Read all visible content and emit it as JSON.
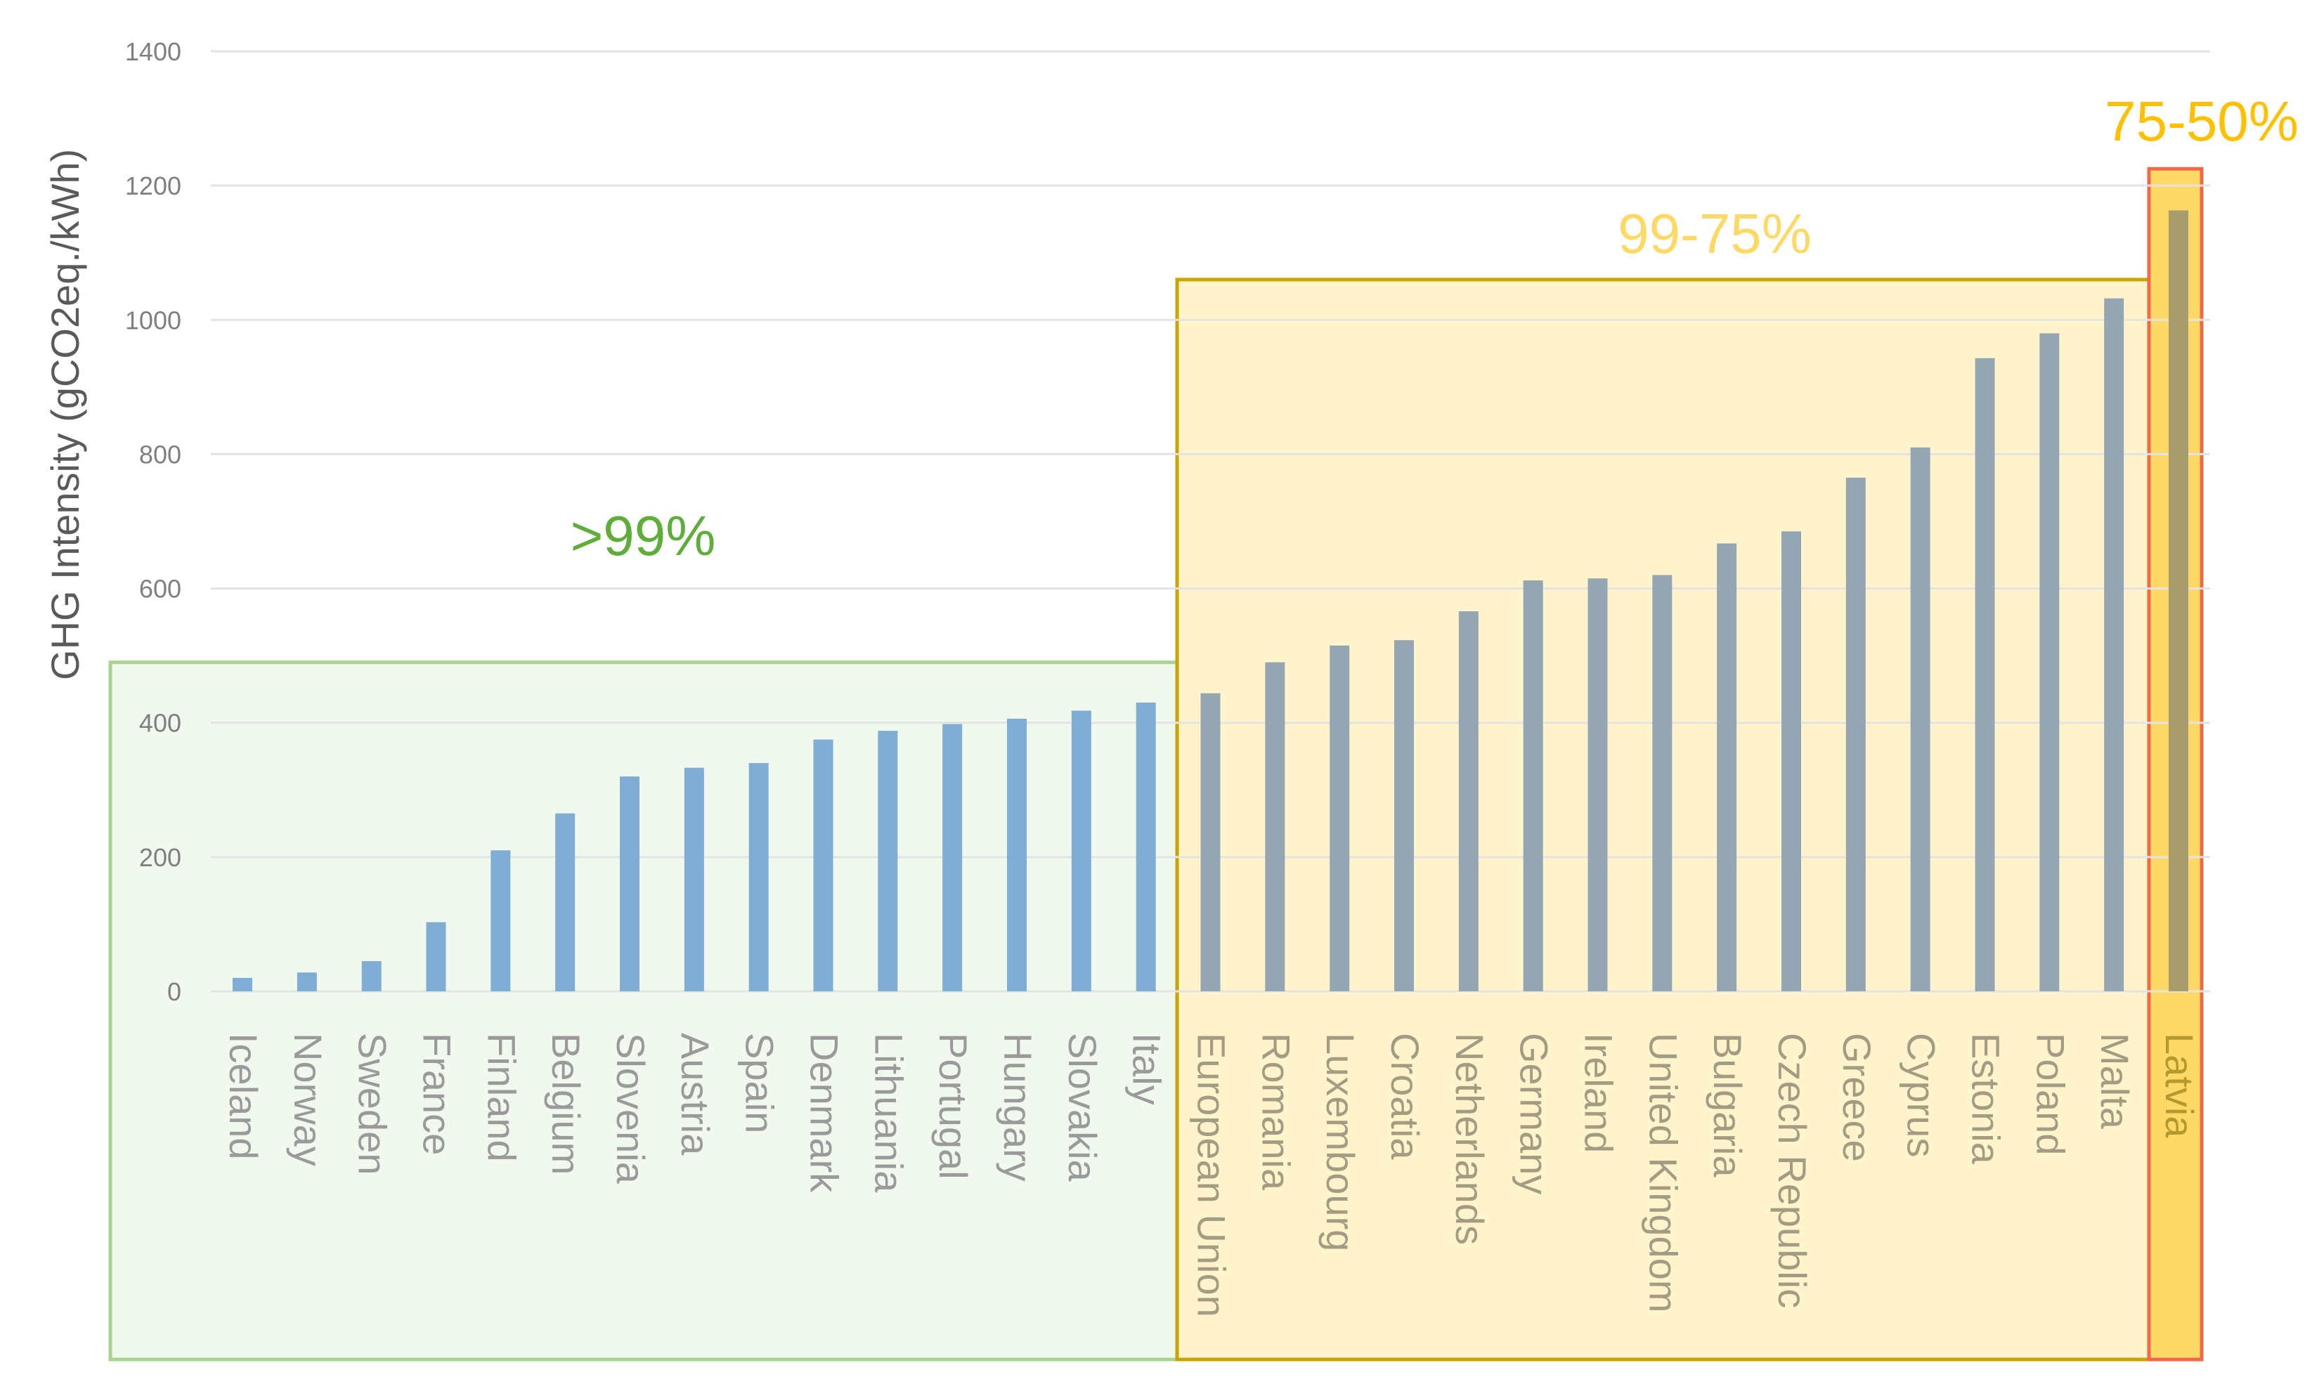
{
  "chart_data": {
    "type": "bar",
    "ylabel": "GHG Intensity (gCO2eq./kWh)",
    "xlabel": "",
    "ylim": [
      0,
      1400
    ],
    "yticks": [
      "0",
      "200",
      "400",
      "600",
      "800",
      "1000",
      "1200",
      "1400"
    ],
    "grid": "horizontal",
    "categories": [
      "Iceland",
      "Norway",
      "Sweden",
      "France",
      "Finland",
      "Belgium",
      "Slovenia",
      "Austria",
      "Spain",
      "Denmark",
      "Lithuania",
      "Portugal",
      "Hungary",
      "Slovakia",
      "Italy",
      "European Union",
      "Romania",
      "Luxembourg",
      "Croatia",
      "Netherlands",
      "Germany",
      "Ireland",
      "United Kingdom",
      "Bulgaria",
      "Czech Republic",
      "Greece",
      "Cyprus",
      "Estonia",
      "Poland",
      "Malta",
      "Latvia"
    ],
    "values": [
      20,
      28,
      45,
      103,
      210,
      265,
      320,
      333,
      340,
      375,
      388,
      398,
      406,
      418,
      430,
      444,
      490,
      515,
      523,
      566,
      612,
      615,
      620,
      667,
      685,
      765,
      810,
      943,
      980,
      1032,
      1163
    ],
    "bands": [
      {
        "label": ">99%",
        "from": "Iceland",
        "to": "Italy",
        "top": 490,
        "fill": "#f1f8ed",
        "stroke": "#a9d393",
        "label_color": "#5fae3b",
        "bar_color": "#7fadd3",
        "text_color": "#9a9a9a"
      },
      {
        "label": "99-75%",
        "from": "European Union",
        "to": "Malta",
        "top": 1060,
        "fill": "#fff4cc",
        "stroke": "#c9a400",
        "label_color": "#ffd966",
        "bar_color": "#95a5b2",
        "text_color": "#a39b82"
      },
      {
        "label": "75-50%",
        "from": "Latvia",
        "to": "Latvia",
        "top": 1225,
        "fill": "#ffd966",
        "stroke": "#f0694a",
        "label_color": "#ffc000",
        "bar_color": "#a89d6c",
        "text_color": "#b49a2e"
      }
    ],
    "colors": {
      "gridline": "#e3e3e3",
      "axis_text": "#7f7f7f",
      "axis_title": "#5a5a5a"
    }
  }
}
